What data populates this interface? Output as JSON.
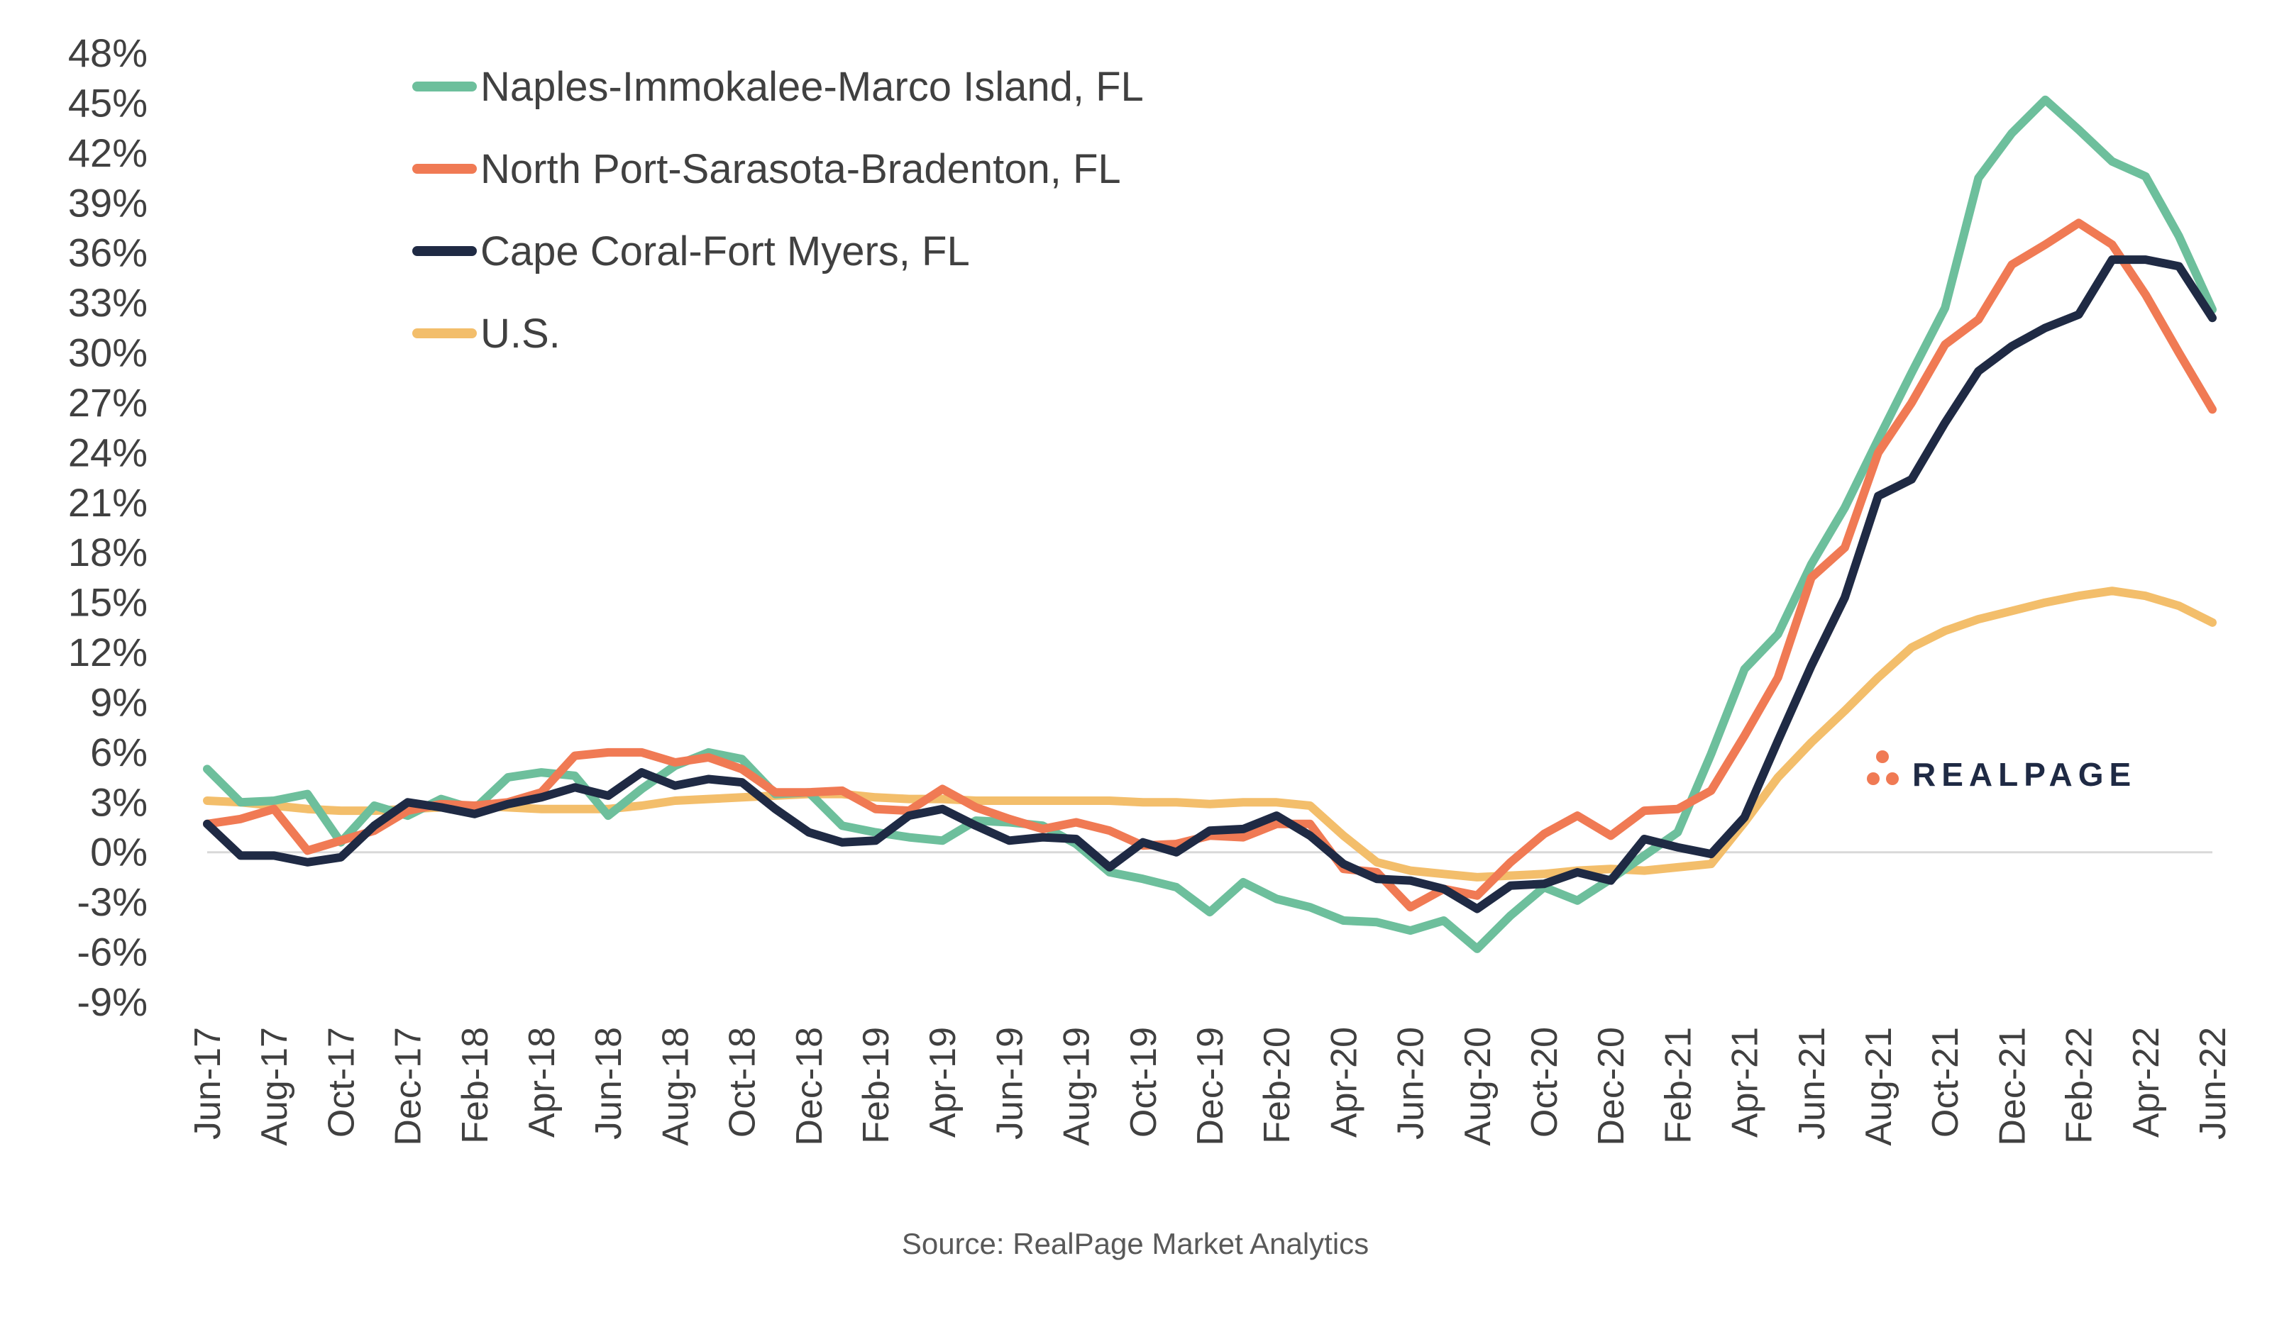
{
  "chart_data": {
    "type": "line",
    "title": "",
    "xlabel": "",
    "ylabel": "",
    "ylim": [
      -9,
      48
    ],
    "yticks": [
      -9,
      -6,
      -3,
      0,
      3,
      6,
      9,
      12,
      15,
      18,
      21,
      24,
      27,
      30,
      33,
      36,
      39,
      42,
      45,
      48
    ],
    "ytick_labels": [
      "-9%",
      "-6%",
      "-3%",
      "0%",
      "3%",
      "6%",
      "9%",
      "12%",
      "15%",
      "18%",
      "21%",
      "24%",
      "27%",
      "30%",
      "33%",
      "36%",
      "39%",
      "42%",
      "45%",
      "48%"
    ],
    "x": [
      "Jun-17",
      "Jul-17",
      "Aug-17",
      "Sep-17",
      "Oct-17",
      "Nov-17",
      "Dec-17",
      "Jan-18",
      "Feb-18",
      "Mar-18",
      "Apr-18",
      "May-18",
      "Jun-18",
      "Jul-18",
      "Aug-18",
      "Sep-18",
      "Oct-18",
      "Nov-18",
      "Dec-18",
      "Jan-19",
      "Feb-19",
      "Mar-19",
      "Apr-19",
      "May-19",
      "Jun-19",
      "Jul-19",
      "Aug-19",
      "Sep-19",
      "Oct-19",
      "Nov-19",
      "Dec-19",
      "Jan-20",
      "Feb-20",
      "Mar-20",
      "Apr-20",
      "May-20",
      "Jun-20",
      "Jul-20",
      "Aug-20",
      "Sep-20",
      "Oct-20",
      "Nov-20",
      "Dec-20",
      "Jan-21",
      "Feb-21",
      "Mar-21",
      "Apr-21",
      "May-21",
      "Jun-21",
      "Jul-21",
      "Aug-21",
      "Sep-21",
      "Oct-21",
      "Nov-21",
      "Dec-21",
      "Jan-22",
      "Feb-22",
      "Mar-22",
      "Apr-22",
      "May-22",
      "Jun-22"
    ],
    "x_tick_labels": [
      "Jun-17",
      "Aug-17",
      "Oct-17",
      "Dec-17",
      "Feb-18",
      "Apr-18",
      "Jun-18",
      "Aug-18",
      "Oct-18",
      "Dec-18",
      "Feb-19",
      "Apr-19",
      "Jun-19",
      "Aug-19",
      "Oct-19",
      "Dec-19",
      "Feb-20",
      "Apr-20",
      "Jun-20",
      "Aug-20",
      "Oct-20",
      "Dec-20",
      "Feb-21",
      "Apr-21",
      "Jun-21",
      "Aug-21",
      "Oct-21",
      "Dec-21",
      "Feb-22",
      "Apr-22",
      "Jun-22"
    ],
    "legend_position": "top-left",
    "grid": false,
    "series": [
      {
        "name": "Naples-Immokalee-Marco Island, FL",
        "color": "#6dbf9c",
        "values": [
          5.0,
          3.0,
          3.1,
          3.5,
          0.6,
          2.8,
          2.2,
          3.2,
          2.6,
          4.5,
          4.8,
          4.6,
          2.2,
          3.8,
          5.2,
          6.0,
          5.6,
          3.5,
          3.6,
          1.6,
          1.2,
          0.9,
          0.7,
          1.9,
          1.8,
          1.6,
          0.5,
          -1.2,
          -1.6,
          -2.1,
          -3.6,
          -1.8,
          -2.8,
          -3.3,
          -4.1,
          -4.2,
          -4.7,
          -4.1,
          -5.8,
          -3.8,
          -2.1,
          -2.9,
          -1.6,
          -0.2,
          1.2,
          5.9,
          11.0,
          13.1,
          17.3,
          20.7,
          24.8,
          28.8,
          32.7,
          40.5,
          43.2,
          45.2,
          43.4,
          41.5,
          40.6,
          37.0,
          32.6
        ]
      },
      {
        "name": "North Port-Sarasota-Bradenton, FL",
        "color": "#f07a54",
        "values": [
          1.7,
          2.0,
          2.6,
          0.1,
          0.7,
          1.3,
          2.5,
          2.9,
          2.8,
          3.0,
          3.6,
          5.8,
          6.0,
          6.0,
          5.4,
          5.7,
          5.0,
          3.6,
          3.6,
          3.7,
          2.6,
          2.5,
          3.8,
          2.7,
          2.0,
          1.4,
          1.8,
          1.3,
          0.4,
          0.5,
          1.0,
          0.9,
          1.7,
          1.7,
          -1.0,
          -1.2,
          -3.3,
          -2.2,
          -2.6,
          -0.6,
          1.1,
          2.2,
          1.0,
          2.5,
          2.6,
          3.7,
          7.0,
          10.5,
          16.5,
          18.3,
          24.0,
          27.0,
          30.5,
          32.0,
          35.3,
          36.5,
          37.8,
          36.5,
          33.5,
          30.0,
          26.6
        ]
      },
      {
        "name": "Cape Coral-Fort Myers, FL",
        "color": "#1f2a44",
        "values": [
          1.7,
          -0.2,
          -0.2,
          -0.6,
          -0.3,
          1.6,
          3.0,
          2.7,
          2.3,
          2.9,
          3.3,
          3.9,
          3.4,
          4.8,
          4.0,
          4.4,
          4.2,
          2.6,
          1.2,
          0.6,
          0.7,
          2.2,
          2.6,
          1.6,
          0.7,
          0.9,
          0.8,
          -0.9,
          0.6,
          0.0,
          1.3,
          1.4,
          2.2,
          1.0,
          -0.7,
          -1.6,
          -1.7,
          -2.2,
          -3.4,
          -2.0,
          -1.9,
          -1.2,
          -1.7,
          0.8,
          0.3,
          -0.1,
          2.1,
          6.7,
          11.2,
          15.3,
          21.4,
          22.4,
          25.8,
          28.9,
          30.4,
          31.5,
          32.3,
          35.6,
          35.6,
          35.2,
          32.1
        ]
      },
      {
        "name": "U.S.",
        "color": "#f3be6b",
        "values": [
          3.1,
          3.0,
          2.8,
          2.6,
          2.5,
          2.5,
          2.6,
          2.7,
          2.8,
          2.7,
          2.6,
          2.6,
          2.6,
          2.8,
          3.1,
          3.2,
          3.3,
          3.4,
          3.5,
          3.5,
          3.3,
          3.2,
          3.2,
          3.1,
          3.1,
          3.1,
          3.1,
          3.1,
          3.0,
          3.0,
          2.9,
          3.0,
          3.0,
          2.8,
          1.0,
          -0.6,
          -1.1,
          -1.3,
          -1.5,
          -1.4,
          -1.3,
          -1.1,
          -1.0,
          -1.1,
          -0.9,
          -0.7,
          1.8,
          4.5,
          6.6,
          8.5,
          10.5,
          12.3,
          13.3,
          14.0,
          14.5,
          15.0,
          15.4,
          15.7,
          15.4,
          14.8,
          13.8
        ]
      }
    ],
    "source_note": "Source: RealPage Market Analytics",
    "logo_text": "REALPAGE"
  }
}
